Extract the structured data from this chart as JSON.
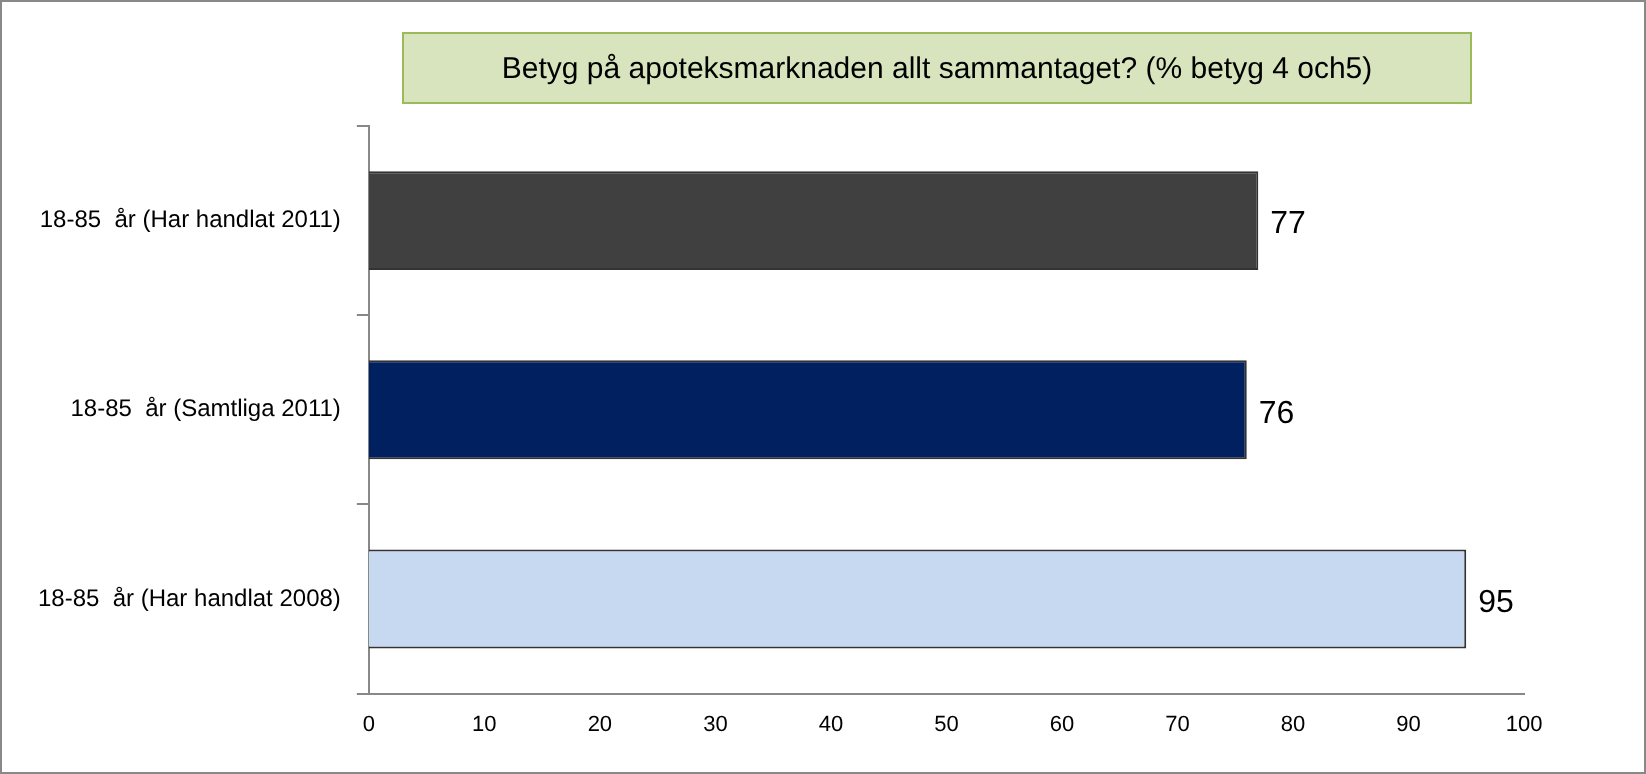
{
  "chart_data": {
    "type": "bar",
    "orientation": "horizontal",
    "title": "Betyg på apoteksmarknaden allt sammantaget?  (% betyg 4 och5)",
    "categories": [
      "18-85  år (Har handlat 2011)",
      "18-85  år (Samtliga 2011)",
      "18-85  år (Har handlat 2008)"
    ],
    "values": [
      77,
      76,
      95
    ],
    "colors": [
      "#404040",
      "#002060",
      "#c6d9f1"
    ],
    "xlim": [
      0,
      100
    ],
    "xticks": [
      0,
      10,
      20,
      30,
      40,
      50,
      60,
      70,
      80,
      90,
      100
    ],
    "grid": false,
    "legend": false,
    "data_labels": true
  }
}
